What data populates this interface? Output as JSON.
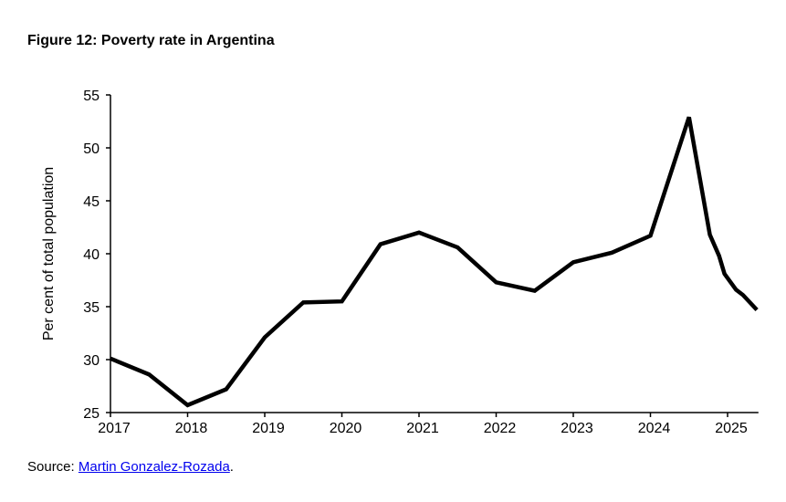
{
  "title": "Figure 12: Poverty rate in Argentina",
  "source": {
    "prefix": "Source: ",
    "link_text": "Martin Gonzalez-Rozada",
    "suffix": "."
  },
  "chart_data": {
    "type": "line",
    "title": "Figure 12: Poverty rate in Argentina",
    "xlabel": "",
    "ylabel": "Per cent of total population",
    "xlim": [
      2017,
      2025.4
    ],
    "ylim": [
      25,
      55
    ],
    "yticks": [
      25,
      30,
      35,
      40,
      45,
      50,
      55
    ],
    "xticks": [
      2017,
      2018,
      2019,
      2020,
      2021,
      2022,
      2023,
      2024,
      2025
    ],
    "grid": false,
    "line_color": "#000000",
    "x": [
      2017.0,
      2017.5,
      2018.0,
      2018.5,
      2019.0,
      2019.5,
      2020.0,
      2020.5,
      2021.0,
      2021.5,
      2022.0,
      2022.5,
      2023.0,
      2023.5,
      2024.0,
      2024.5,
      2024.77,
      2024.89,
      2024.96,
      2025.11,
      2025.2,
      2025.38
    ],
    "y": [
      30.1,
      28.6,
      25.7,
      27.2,
      32.1,
      35.4,
      35.5,
      40.9,
      42.0,
      40.6,
      37.3,
      36.5,
      39.2,
      40.1,
      41.7,
      52.9,
      41.8,
      39.8,
      38.1,
      36.6,
      36.1,
      34.7
    ]
  }
}
